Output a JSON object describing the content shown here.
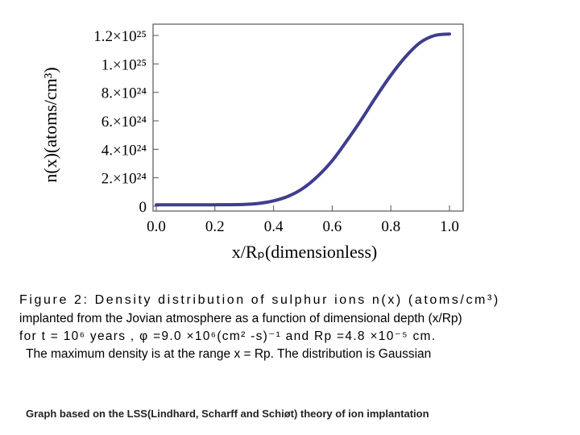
{
  "chart_data": {
    "type": "line",
    "title": "",
    "xlabel": "x/Rₚ(dimensionless)",
    "ylabel": "n(x)(atoms/cm³)",
    "xlim": [
      0.0,
      1.0
    ],
    "ylim": [
      0,
      1.2e+25
    ],
    "x_ticks": [
      "0.0",
      "0.2",
      "0.4",
      "0.6",
      "0.8",
      "1.0"
    ],
    "y_ticks": [
      "0",
      "2.×10²⁴",
      "4.×10²⁴",
      "6.×10²⁴",
      "8.×10²⁴",
      "1.×10²⁵",
      "1.2×10²⁵"
    ],
    "y_tick_values": [
      0,
      2e+24,
      4e+24,
      6e+24,
      8e+24,
      1e+25,
      1.2e+25
    ],
    "grid": false,
    "series": [
      {
        "color": "#3f3d8e",
        "x": [
          0.0,
          0.1,
          0.2,
          0.3,
          0.35,
          0.4,
          0.45,
          0.5,
          0.55,
          0.6,
          0.65,
          0.7,
          0.75,
          0.8,
          0.85,
          0.9,
          0.95,
          1.0
        ],
        "y": [
          1e+23,
          1e+23,
          1e+23,
          1.3e+23,
          2e+23,
          3.8e+23,
          7e+23,
          1.25e+24,
          2.1e+24,
          3.2e+24,
          4.6e+24,
          6.1e+24,
          7.7e+24,
          9.2e+24,
          1.05e+25,
          1.15e+25,
          1.2e+25,
          1.21e+25
        ]
      }
    ]
  },
  "caption": {
    "line1": "Figure 2: Density distribution of sulphur ions n(x) (atoms/cm³)",
    "line2": "implanted from the Jovian atmosphere as a function of dimensional depth (x/Rp)",
    "line3": "for t = 10⁶ years , φ =9.0 ×10⁶(cm² -s)⁻¹ and Rp =4.8 ×10⁻⁵ cm.",
    "line4": "The maximum density is at the range x = Rp. The distribution is Gaussian"
  },
  "footnote": "Graph based on the LSS(Lindhard, Scharff and Schiøt) theory of ion implantation"
}
